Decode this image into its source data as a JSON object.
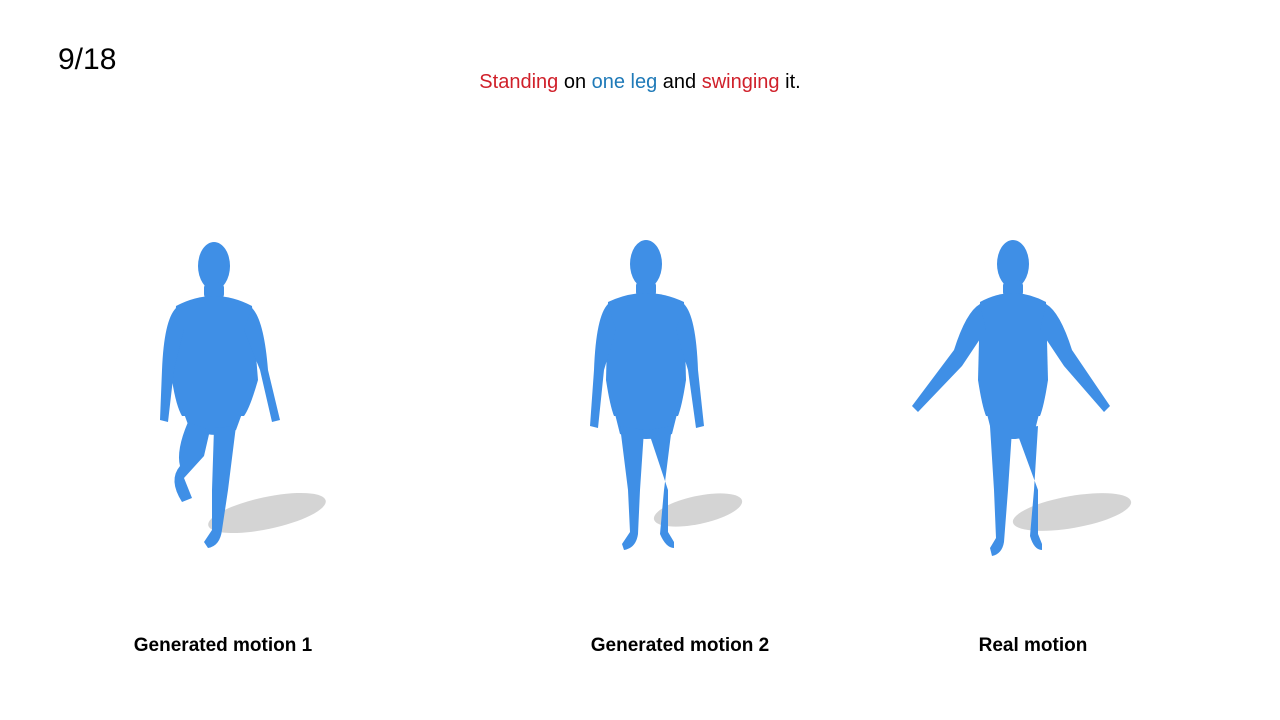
{
  "slide": {
    "counter": "9/18"
  },
  "caption": {
    "segments": [
      {
        "text": "Standing",
        "color": "#d0202a"
      },
      {
        "text": " on ",
        "color": "#000000"
      },
      {
        "text": "one leg",
        "color": "#1f7ab8"
      },
      {
        "text": " and ",
        "color": "#000000"
      },
      {
        "text": "swinging",
        "color": "#d0202a"
      },
      {
        "text": " it.",
        "color": "#000000"
      }
    ]
  },
  "panels": [
    {
      "label": "Generated motion 1",
      "pose": "one-leg-raised"
    },
    {
      "label": "Generated motion 2",
      "pose": "standing"
    },
    {
      "label": "Real motion",
      "pose": "arms-spread"
    }
  ],
  "colors": {
    "body": "#3f8fe6",
    "body_shade": "#2f78d0",
    "shadow": "#c9c9c9"
  }
}
